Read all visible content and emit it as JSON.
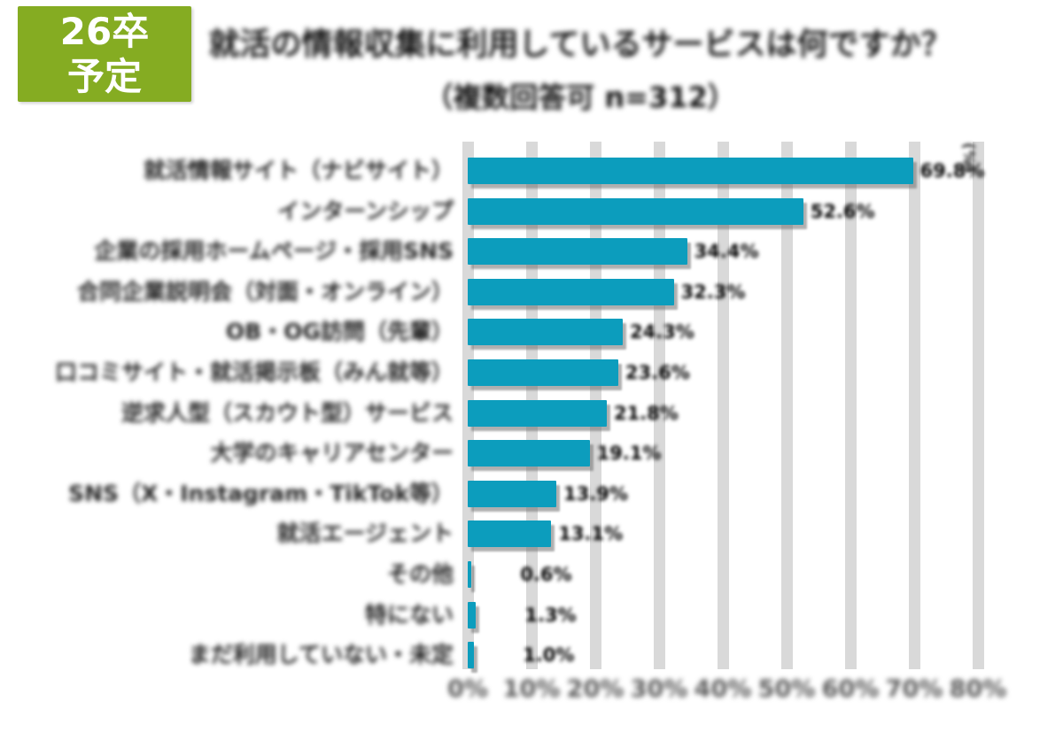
{
  "badge": {
    "line1": "26卒",
    "line2": "予定",
    "bg_color": "#85AC22",
    "text_color": "#FFFFFF"
  },
  "title": {
    "line1": "就活の情報収集に利用しているサービスは何ですか？",
    "line2": "（複数回答可 n=312）"
  },
  "chart_data": {
    "type": "bar",
    "orientation": "horizontal",
    "title": "就活の情報収集に利用しているサービスは何ですか？（複数回答可 n=312）",
    "categories": [
      "就活情報サイト（ナビサイト）",
      "インターンシップ",
      "企業の採用ホームページ・採用SNS",
      "合同企業説明会（対面・オンライン）",
      "OB・OG訪問（先輩）",
      "口コミサイト・就活掲示板（みん就等）",
      "逆求人型（スカウト型）サービス",
      "大学のキャリアセンター",
      "SNS（X・Instagram・TikTok等）",
      "就活エージェント",
      "その他",
      "特にない",
      "まだ利用していない・未定"
    ],
    "values": [
      69.8,
      52.6,
      34.4,
      32.3,
      24.3,
      23.6,
      21.8,
      19.1,
      13.9,
      13.1,
      0.6,
      1.3,
      1.0
    ],
    "value_labels": [
      "69.8%",
      "52.6%",
      "34.4%",
      "32.3%",
      "24.3%",
      "23.6%",
      "21.8%",
      "19.1%",
      "13.9%",
      "13.1%",
      "0.6%",
      "1.3%",
      "1.0%"
    ],
    "x_ticks": [
      "0%",
      "10%",
      "20%",
      "30%",
      "40%",
      "50%",
      "60%",
      "70%",
      "80%"
    ],
    "xlim": [
      0,
      80
    ],
    "axis_unit": "(%)",
    "xlabel": "",
    "ylabel": "",
    "legend": "none",
    "grid": "vertical gridlines every 10%",
    "bar_color": "#0C9DBD",
    "gridline_color": "#D9D9D9",
    "tick_label_color": "#595959"
  },
  "layout_note": "all chart text in source image is blurred/obfuscated except the green badge"
}
